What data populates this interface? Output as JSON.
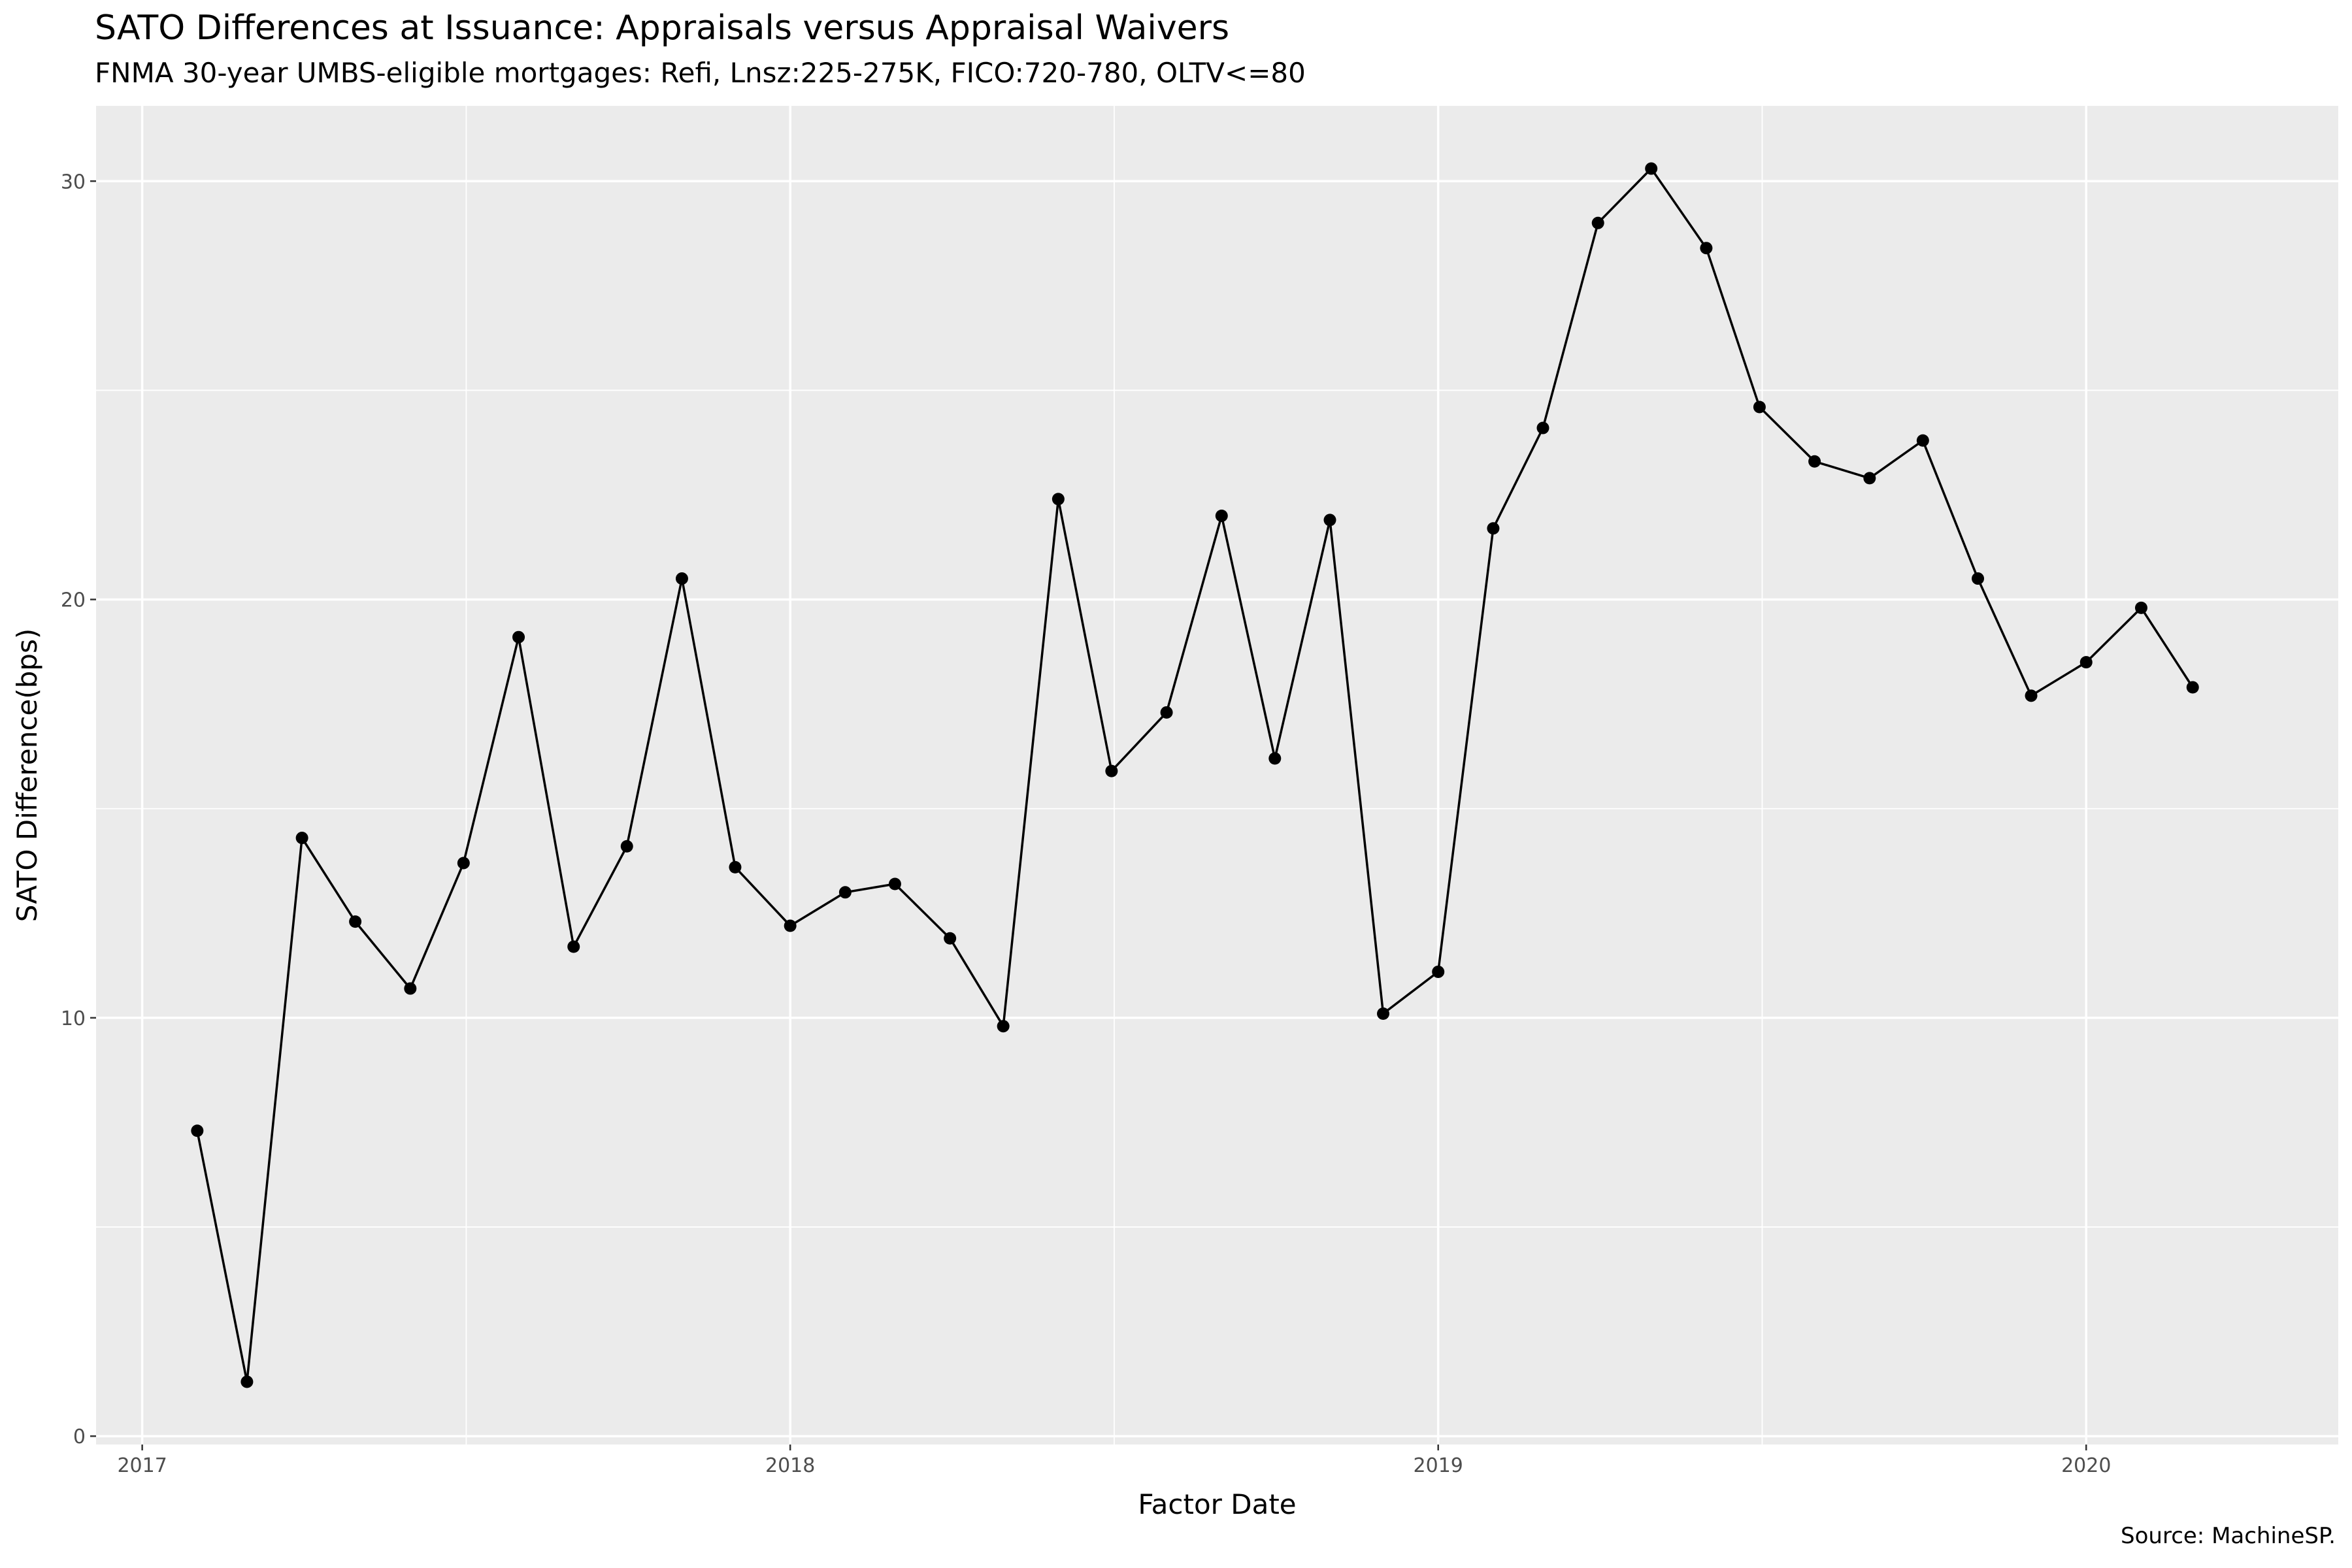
{
  "chart_data": {
    "type": "line",
    "title": "SATO Differences at Issuance: Appraisals versus Appraisal Waivers",
    "subtitle": "FNMA 30-year UMBS-eligible mortgages: Refi, Lnsz:225-275K, FICO:720-780, OLTV<=80",
    "caption": "Source: MachineSP.",
    "xlabel": "Factor Date",
    "ylabel": "SATO Difference(bps)",
    "x_ticks": [
      "2017",
      "2018",
      "2019",
      "2020"
    ],
    "y_ticks": [
      "0",
      "10",
      "20",
      "30"
    ],
    "ylim": [
      -0.2,
      31.8
    ],
    "xlim": [
      "2016-12-06",
      "2020-05-22"
    ],
    "grid": true,
    "legend": "none",
    "line_color": "#000000",
    "panel_color": "#ebebeb",
    "points": [
      {
        "x": "2017-02-01",
        "y": 7.3
      },
      {
        "x": "2017-03-01",
        "y": 1.3
      },
      {
        "x": "2017-04-01",
        "y": 14.3
      },
      {
        "x": "2017-05-01",
        "y": 12.3
      },
      {
        "x": "2017-06-01",
        "y": 10.7
      },
      {
        "x": "2017-07-01",
        "y": 13.7
      },
      {
        "x": "2017-08-01",
        "y": 19.1
      },
      {
        "x": "2017-09-01",
        "y": 11.7
      },
      {
        "x": "2017-10-01",
        "y": 14.1
      },
      {
        "x": "2017-11-01",
        "y": 20.5
      },
      {
        "x": "2017-12-01",
        "y": 13.6
      },
      {
        "x": "2018-01-01",
        "y": 12.2
      },
      {
        "x": "2018-02-01",
        "y": 13.0
      },
      {
        "x": "2018-03-01",
        "y": 13.2
      },
      {
        "x": "2018-04-01",
        "y": 11.9
      },
      {
        "x": "2018-05-01",
        "y": 9.8
      },
      {
        "x": "2018-06-01",
        "y": 22.4
      },
      {
        "x": "2018-07-01",
        "y": 15.9
      },
      {
        "x": "2018-08-01",
        "y": 17.3
      },
      {
        "x": "2018-09-01",
        "y": 22.0
      },
      {
        "x": "2018-10-01",
        "y": 16.2
      },
      {
        "x": "2018-11-01",
        "y": 21.9
      },
      {
        "x": "2018-12-01",
        "y": 10.1
      },
      {
        "x": "2019-01-01",
        "y": 11.1
      },
      {
        "x": "2019-02-01",
        "y": 21.7
      },
      {
        "x": "2019-03-01",
        "y": 24.1
      },
      {
        "x": "2019-04-01",
        "y": 29.0
      },
      {
        "x": "2019-05-01",
        "y": 30.3
      },
      {
        "x": "2019-06-01",
        "y": 28.4
      },
      {
        "x": "2019-07-01",
        "y": 24.6
      },
      {
        "x": "2019-08-01",
        "y": 23.3
      },
      {
        "x": "2019-09-01",
        "y": 22.9
      },
      {
        "x": "2019-10-01",
        "y": 23.8
      },
      {
        "x": "2019-11-01",
        "y": 20.5
      },
      {
        "x": "2019-12-01",
        "y": 17.7
      },
      {
        "x": "2020-01-01",
        "y": 18.5
      },
      {
        "x": "2020-02-01",
        "y": 19.8
      },
      {
        "x": "2020-03-01",
        "y": 17.9
      }
    ]
  }
}
